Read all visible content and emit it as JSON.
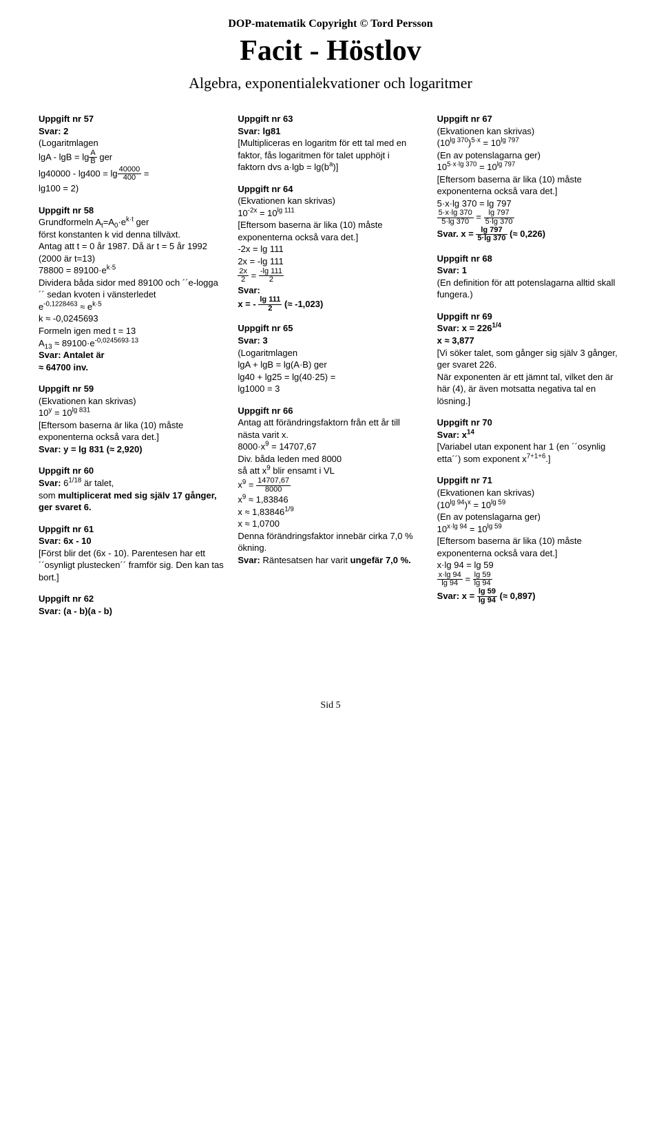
{
  "copyright": "DOP-matematik Copyright © Tord Persson",
  "title": "Facit - Höstlov",
  "subtitle": "Algebra, exponentialekvationer och logaritmer",
  "footer": "Sid 5",
  "t57": {
    "h": "Uppgift nr 57",
    "ans": "Svar: 2",
    "a": "(Logaritmlagen",
    "b": "lgA - lgB = lg",
    "fa": "A",
    "fb": "B",
    "c": " ger",
    "d": "lg40000 - lg400  =  lg",
    "fc": "40000",
    "fd": "400",
    "e": " =",
    "f": "lg100 = 2)"
  },
  "t58": {
    "h": "Uppgift nr 58",
    "a1": "Grundformeln A",
    "a2": "t",
    "a3": "=A",
    "a4": "0",
    "a5": "·e",
    "a6": "k·t",
    "a7": " ger",
    "b": "först konstanten k vid denna tillväxt.",
    "c": "Antag att t = 0 år 1987. Då är t = 5 år 1992 (2000 är t=13)",
    "d1": "78800 = 89100·e",
    "d2": "k·5",
    "e": "Dividera båda sidor med 89100 och ´´e-logga´´ sedan kvoten i vänsterledet",
    "f1": "e",
    "f2": "-0,1228463",
    "f3": " ≈ e",
    "f4": "k·5",
    "g": "k ≈ -0,0245693",
    "h2": "Formeln igen med t = 13",
    "i1": "A",
    "i2": "13",
    "i3": " ≈ 89100·e",
    "i4": "-0,0245693·13",
    "ans": "Svar: Antalet är",
    "ans2": "≈ 64700 inv."
  },
  "t59": {
    "h": "Uppgift nr 59",
    "a": "(Ekvationen kan skrivas)",
    "b1": "10",
    "b2": "y",
    "b3": " = 10",
    "b4": "lg 831",
    "c": "[Eftersom baserna är lika (10) måste exponenterna också vara det.]",
    "ans": "Svar: y = lg 831 (≈  2,920)"
  },
  "t60": {
    "h": "Uppgift nr 60",
    "a1": "Svar: ",
    "a2": "6",
    "a3": "1/18",
    "a4": " är talet,",
    "b": "som multiplicerat med sig själv 17 gånger, ger svaret 6."
  },
  "t61": {
    "h": "Uppgift nr 61",
    "ans": "Svar: 6x - 10",
    "a": "[Först blir det (6x - 10). Parentesen har ett ´´osynligt plustecken´´ framför sig. Den kan tas bort.]"
  },
  "t62": {
    "h": "Uppgift nr 62",
    "ans": "Svar: (a - b)(a - b)"
  },
  "t63": {
    "h": "Uppgift nr 63",
    "ans": "Svar: lg81",
    "a": "[Multipliceras en logaritm för ett tal med en faktor, fås logaritmen för talet upphöjt i",
    "b1": "faktorn dvs a·lgb = lg(b",
    "b2": "a",
    "b3": ")]"
  },
  "t64": {
    "h": "Uppgift nr 64",
    "a": "(Ekvationen kan skrivas)",
    "b1": "10",
    "b2": "-2x",
    "b3": " = 10",
    "b4": "lg 111",
    "c": "[Eftersom baserna är lika (10) måste exponenterna också vara det.]",
    "d": "-2x = lg 111",
    "e": "2x = -lg 111",
    "fa": "2x",
    "fb": "2",
    "fc": "-lg 111",
    "fd": "2",
    "eq": " = ",
    "ans1": "Svar:",
    "ans2": "x = - ",
    "fn": "lg 111",
    "fdv": "2",
    "ans3": " (≈  -1,023)"
  },
  "t65": {
    "h": "Uppgift nr 65",
    "ans": "Svar: 3",
    "a": "(Logaritmlagen",
    "b": "lgA + lgB = lg(A·B) ger",
    "c": "lg40 + lg25 =  lg(40·25) =",
    "d": "lg1000 = 3"
  },
  "t66": {
    "h": "Uppgift nr 66",
    "a": "Antag att förändringsfaktorn från ett år till nästa varit x.",
    "b1": "8000·x",
    "b2": "9",
    "b3": " = 14707,67",
    "c": "Div. båda leden med 8000",
    "d1": "så att x",
    "d2": "9",
    "d3": " blir ensamt i VL",
    "e1": "x",
    "e2": "9",
    "e3": " = ",
    "fa": "14707,67",
    "fb": "8000",
    "f1": "x",
    "f2": "9",
    "f3": " ≈ 1,83846",
    "g1": "x ≈ 1,83846",
    "g2": "1/9",
    "h2": "x ≈ 1,0700",
    "i": "Denna förändringsfaktor innebär cirka 7,0 % ökning.",
    "ans1": "Svar: ",
    "ans2": "Räntesatsen har varit ",
    "ans3": "ungefär 7,0 %."
  },
  "t67": {
    "h": "Uppgift nr 67",
    "a": "(Ekvationen kan skrivas)",
    "b1": "(10",
    "b2": "lg 370",
    "b3": ")",
    "b4": "5·x",
    "b5": " = 10",
    "b6": "lg 797",
    "c": "(En av potenslagarna ger)",
    "d1": "10",
    "d2": "5·x·lg 370",
    "d3": " = 10",
    "d4": "lg 797",
    "e": "[Eftersom baserna är lika (10) måste exponenterna också vara det.]",
    "f": "5·x·lg 370 = lg 797",
    "g1a": "5·x·lg 370",
    "g1b": "5·lg 370",
    "g2a": "lg 797",
    "g2b": "5·lg 370",
    "eq": " = ",
    "ans1": "Svar. x = ",
    "hn": "lg 797",
    "hd": "5·lg 370",
    "ans2": " (≈  0,226)"
  },
  "t68": {
    "h": "Uppgift nr 68",
    "ans": "Svar: 1",
    "a": "(En definition för att potenslagarna alltid skall fungera.)"
  },
  "t69": {
    "h": "Uppgift nr 69",
    "a1": "Svar: x = 226",
    "a2": "1/4",
    "b": "x ≈ 3,877",
    "c": "[Vi söker talet, som gånger sig själv 3 gånger, ger svaret 226.",
    "d": "När exponenten är ett jämnt tal, vilket den är här (4), är även motsatta negativa tal en lösning.]"
  },
  "t70": {
    "h": "Uppgift nr 70",
    "a1": "Svar: x",
    "a2": "14",
    "b1": "[Variabel utan exponent har 1 (en ´´osynlig etta´´) som exponent x",
    "b2": "7+1+6",
    "b3": ".]"
  },
  "t71": {
    "h": "Uppgift nr 71",
    "a": "(Ekvationen kan skrivas)",
    "b1": "(10",
    "b2": "lg 94",
    "b3": ")",
    "b4": "x",
    "b5": " = 10",
    "b6": "lg 59",
    "c": "(En av potenslagarna ger)",
    "d1": "10",
    "d2": "x·lg 94",
    "d3": " = 10",
    "d4": "lg 59",
    "e": "[Eftersom baserna är lika (10) måste exponenterna också vara det.]",
    "f": "x·lg 94 = lg 59",
    "g1a": "x·lg 94",
    "g1b": "lg 94",
    "g2a": "lg 59",
    "g2b": "lg 94",
    "eq": " = ",
    "ans1": "Svar: x = ",
    "hn": "lg 59",
    "hd": "lg 94",
    "ans2": " (≈  0,897)"
  }
}
